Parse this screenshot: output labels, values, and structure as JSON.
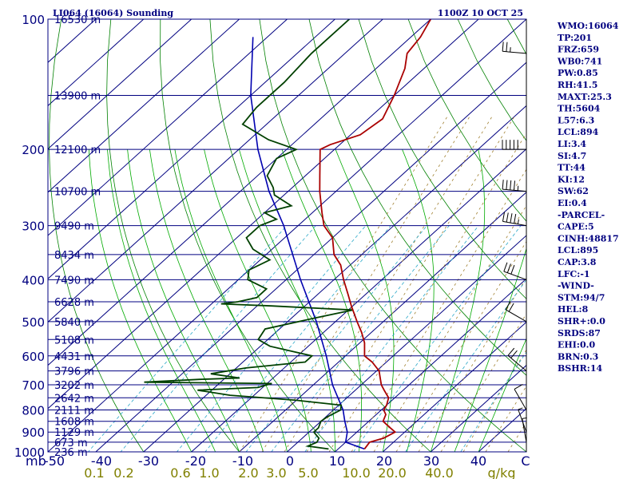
{
  "header": {
    "station": "LI064 (16064) Sounding",
    "time": "1100Z 10 OCT 25"
  },
  "chart_data": {
    "type": "skew-t",
    "pressure_range_hpa": [
      1000,
      100
    ],
    "temperature_range_c": [
      -50,
      50
    ],
    "skew_per_decade_c": 100,
    "pressure_labels": [
      100,
      200,
      300,
      400,
      500,
      600,
      700,
      800,
      900,
      1000
    ],
    "pressure_unit_label": "mb",
    "temperature_ticks": [
      "-50",
      "-40",
      "-30",
      "-20",
      "-10",
      "0",
      "10",
      "20",
      "30",
      "40",
      "C"
    ],
    "mixing_ratio_ticks": [
      "0.1",
      "0.2",
      "0.6",
      "1.0",
      "2.0",
      "3.0",
      "5.0",
      "10.0",
      "20.0",
      "40.0",
      "g/kg"
    ],
    "height_labels": [
      {
        "p": 100,
        "label": "16530 m"
      },
      {
        "p": 150,
        "label": "13900 m"
      },
      {
        "p": 200,
        "label": "12100 m"
      },
      {
        "p": 250,
        "label": "10700 m"
      },
      {
        "p": 300,
        "label": "9490 m"
      },
      {
        "p": 350,
        "label": "8434 m"
      },
      {
        "p": 400,
        "label": "7490 m"
      },
      {
        "p": 450,
        "label": "6628 m"
      },
      {
        "p": 500,
        "label": "5840 m"
      },
      {
        "p": 550,
        "label": "5108 m"
      },
      {
        "p": 600,
        "label": "4431 m"
      },
      {
        "p": 650,
        "label": "3796 m"
      },
      {
        "p": 700,
        "label": "3202 m"
      },
      {
        "p": 750,
        "label": "2642 m"
      },
      {
        "p": 800,
        "label": "2111 m"
      },
      {
        "p": 850,
        "label": "1608 m"
      },
      {
        "p": 900,
        "label": "1129 m"
      },
      {
        "p": 950,
        "label": "673 m"
      },
      {
        "p": 1000,
        "label": "236 m"
      }
    ],
    "temperature_profile": [
      [
        985,
        15.5
      ],
      [
        950,
        15
      ],
      [
        930,
        17
      ],
      [
        900,
        18
      ],
      [
        880,
        16
      ],
      [
        850,
        13
      ],
      [
        820,
        12
      ],
      [
        800,
        10.5
      ],
      [
        780,
        10
      ],
      [
        750,
        8.7
      ],
      [
        720,
        6
      ],
      [
        700,
        4.2
      ],
      [
        670,
        2
      ],
      [
        650,
        0.5
      ],
      [
        620,
        -3
      ],
      [
        600,
        -6
      ],
      [
        560,
        -9
      ],
      [
        530,
        -12
      ],
      [
        500,
        -15.5
      ],
      [
        460,
        -20.3
      ],
      [
        430,
        -24
      ],
      [
        400,
        -28
      ],
      [
        370,
        -32
      ],
      [
        350,
        -35.8
      ],
      [
        320,
        -40
      ],
      [
        300,
        -44.6
      ],
      [
        280,
        -48
      ],
      [
        250,
        -53.4
      ],
      [
        230,
        -57
      ],
      [
        200,
        -63
      ],
      [
        195,
        -62
      ],
      [
        185,
        -58
      ],
      [
        170,
        -57
      ],
      [
        150,
        -60
      ],
      [
        130,
        -64
      ],
      [
        120,
        -67
      ],
      [
        110,
        -68
      ],
      [
        100,
        -70
      ]
    ],
    "dewpoint_profile": [
      [
        985,
        8
      ],
      [
        970,
        3
      ],
      [
        950,
        4
      ],
      [
        930,
        3.5
      ],
      [
        900,
        1
      ],
      [
        880,
        1
      ],
      [
        850,
        0
      ],
      [
        830,
        0.3
      ],
      [
        800,
        1.5
      ],
      [
        780,
        0.5
      ],
      [
        760,
        -10
      ],
      [
        740,
        -25
      ],
      [
        720,
        -33
      ],
      [
        710,
        -21
      ],
      [
        695,
        -19
      ],
      [
        690,
        -46
      ],
      [
        680,
        -35
      ],
      [
        675,
        -27
      ],
      [
        660,
        -34
      ],
      [
        640,
        -28
      ],
      [
        620,
        -17
      ],
      [
        600,
        -17
      ],
      [
        570,
        -28
      ],
      [
        550,
        -32
      ],
      [
        520,
        -33
      ],
      [
        490,
        -25
      ],
      [
        470,
        -19
      ],
      [
        460,
        -37
      ],
      [
        455,
        -48
      ],
      [
        450,
        -45
      ],
      [
        440,
        -42
      ],
      [
        420,
        -42
      ],
      [
        400,
        -48
      ],
      [
        380,
        -50
      ],
      [
        360,
        -48
      ],
      [
        340,
        -54
      ],
      [
        320,
        -58
      ],
      [
        300,
        -58
      ],
      [
        290,
        -56
      ],
      [
        280,
        -60
      ],
      [
        270,
        -56
      ],
      [
        255,
        -62
      ],
      [
        245,
        -64
      ],
      [
        230,
        -68
      ],
      [
        210,
        -70
      ],
      [
        200,
        -68
      ],
      [
        190,
        -76
      ],
      [
        175,
        -85
      ],
      [
        160,
        -86
      ],
      [
        140,
        -86
      ],
      [
        120,
        -87
      ],
      [
        100,
        -87
      ]
    ],
    "parcel_profile": [
      [
        985,
        15.5
      ],
      [
        950,
        10
      ],
      [
        900,
        8
      ],
      [
        850,
        5
      ],
      [
        800,
        2
      ],
      [
        700,
        -6
      ],
      [
        600,
        -14
      ],
      [
        500,
        -24
      ],
      [
        400,
        -37
      ],
      [
        300,
        -53
      ],
      [
        250,
        -64
      ],
      [
        200,
        -76
      ],
      [
        150,
        -90
      ],
      [
        110,
        -103
      ]
    ],
    "wind_barbs": [
      {
        "p": 120,
        "dir": 275,
        "kt": 25
      },
      {
        "p": 200,
        "dir": 270,
        "kt": 50
      },
      {
        "p": 250,
        "dir": 275,
        "kt": 45
      },
      {
        "p": 300,
        "dir": 280,
        "kt": 45
      },
      {
        "p": 400,
        "dir": 290,
        "kt": 30
      },
      {
        "p": 500,
        "dir": 300,
        "kt": 20
      },
      {
        "p": 650,
        "dir": 310,
        "kt": 20
      },
      {
        "p": 800,
        "dir": 330,
        "kt": 10
      },
      {
        "p": 900,
        "dir": 340,
        "kt": 5
      },
      {
        "p": 950,
        "dir": 350,
        "kt": 5
      }
    ],
    "dry_adiabat_thetas_k": [
      -270,
      -250,
      -230,
      -210,
      -190,
      -170,
      -150,
      -130,
      -110,
      -90,
      -70,
      -50,
      -30,
      -10,
      10,
      30,
      50,
      70,
      90,
      110,
      130,
      150,
      170,
      190,
      210
    ],
    "moist_adiabat_thetaw_c": [
      -20,
      -15,
      -10,
      -5,
      0,
      5,
      10,
      15,
      20,
      25,
      30,
      35,
      40
    ],
    "mixing_ratio_values_gkg": [
      0.1,
      0.2,
      0.6,
      1.0,
      2.0,
      3.0,
      5.0,
      10.0,
      20.0,
      40.0
    ]
  },
  "indices": [
    "WMO:16064",
    "TP:201",
    "FRZ:659",
    "WB0:741",
    "PW:0.85",
    "RH:41.5",
    "MAXT:25.3",
    "TH:5604",
    "L57:6.3",
    "LCL:894",
    "LI:3.4",
    "SI:4.7",
    "TT:44",
    "KI:12",
    "SW:62",
    "EI:0.4",
    "-PARCEL-",
    "CAPE:5",
    "CINH:48817",
    "LCL:895",
    "CAP:3.8",
    "LFC:-1",
    "-WIND-",
    "STM:94/7",
    "HEL:8",
    "SHR+:0.0",
    "SRDS:87",
    "EHI:0.0",
    "BRN:0.3",
    "BSHR:14"
  ],
  "colors": {
    "frame": "#000080",
    "isotherm": "#000080",
    "dry_adiabat": "#008000",
    "moist_adiabat": "#00aa00",
    "mixing_ratio": "#2aa8c8",
    "theta_e_dashed": "#a08030",
    "temperature": "#aa0000",
    "dewpoint": "#004000",
    "parcel": "#0000b0",
    "barb": "#000000",
    "mixing_label": "#808000"
  }
}
